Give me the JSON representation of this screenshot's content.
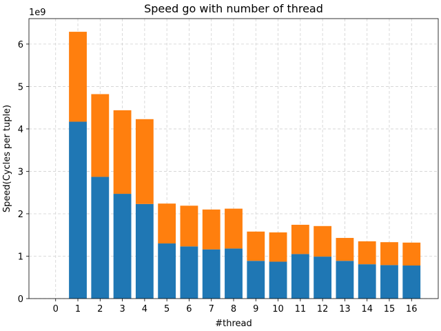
{
  "chart_data": {
    "type": "bar",
    "stacked": true,
    "title": "Speed go with number of thread",
    "xlabel": "#thread",
    "ylabel": "Speed(Cycles per tuple)",
    "offset_label": "1e9",
    "x_ticks": [
      "0",
      "1",
      "2",
      "3",
      "4",
      "5",
      "6",
      "7",
      "8",
      "9",
      "10",
      "11",
      "12",
      "13",
      "14",
      "15",
      "16"
    ],
    "y_ticks": [
      "0",
      "1",
      "2",
      "3",
      "4",
      "5",
      "6"
    ],
    "y_tick_values": [
      0,
      1,
      2,
      3,
      4,
      5,
      6
    ],
    "xlim": [
      -1.2,
      17.2
    ],
    "ylim": [
      0,
      6.6
    ],
    "grid": true,
    "categories": [
      1,
      2,
      3,
      4,
      5,
      6,
      7,
      8,
      9,
      10,
      11,
      12,
      13,
      14,
      15,
      16
    ],
    "series": [
      {
        "color": "#1f77b4",
        "values": [
          4.17,
          2.87,
          2.47,
          2.23,
          1.3,
          1.23,
          1.16,
          1.18,
          0.89,
          0.87,
          1.05,
          0.99,
          0.89,
          0.81,
          0.79,
          0.78
        ]
      },
      {
        "color": "#ff7f0e",
        "values": [
          2.12,
          1.95,
          1.97,
          2.0,
          0.94,
          0.96,
          0.94,
          0.94,
          0.69,
          0.69,
          0.69,
          0.72,
          0.54,
          0.54,
          0.54,
          0.54
        ]
      }
    ],
    "colors": {
      "axes": "#000000",
      "grid": "#d0d0d0"
    }
  }
}
